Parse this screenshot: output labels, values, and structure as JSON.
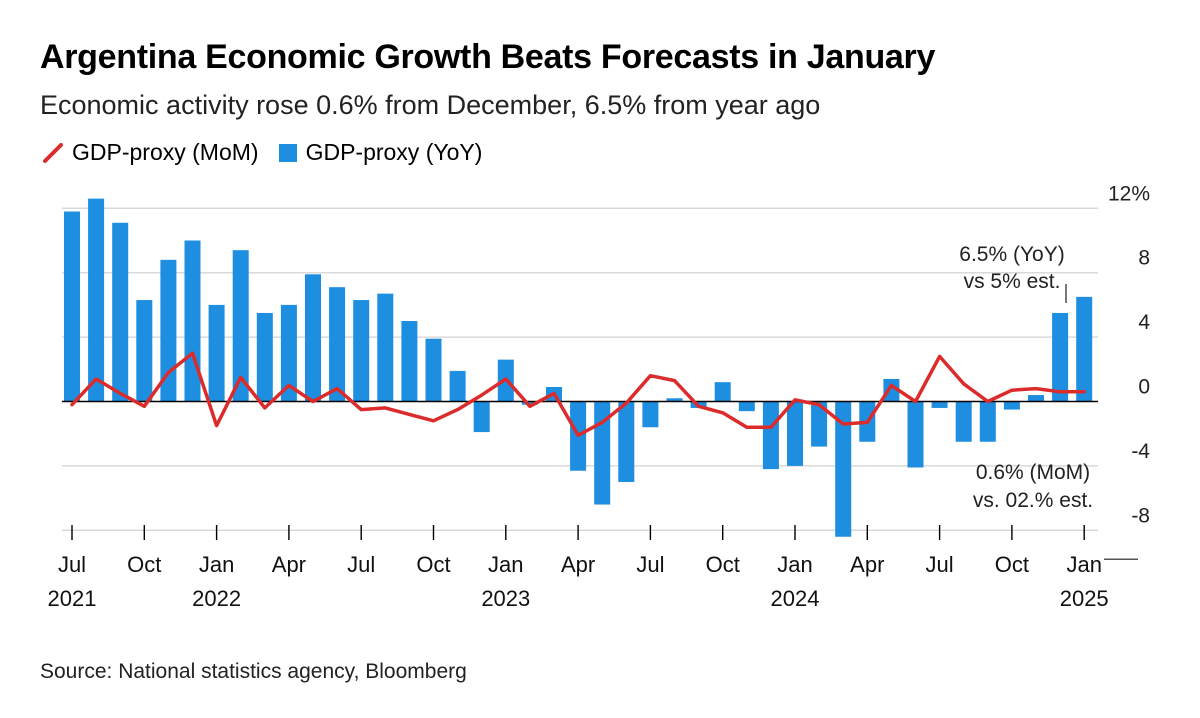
{
  "title": "Argentina Economic Growth Beats Forecasts in January",
  "subtitle": "Economic activity rose 0.6% from December, 6.5% from year ago",
  "source": "Source: National statistics agency, Bloomberg",
  "colors": {
    "bar": "#1e8ee0",
    "line": "#dc2b2b",
    "grid": "#d9d9d9",
    "axis": "#000000"
  },
  "chart_data": {
    "type": "bar",
    "title": "Argentina Economic Growth Beats Forecasts in January",
    "legend": {
      "position": "top-left",
      "entries": [
        "GDP-proxy (MoM)",
        "GDP-proxy (YoY)"
      ]
    },
    "ylim": [
      -8.5,
      12
    ],
    "yticks": [
      {
        "value": 12,
        "label": "12%"
      },
      {
        "value": 8,
        "label": "8"
      },
      {
        "value": 4,
        "label": "4"
      },
      {
        "value": 0,
        "label": "0"
      },
      {
        "value": -4,
        "label": "-4"
      },
      {
        "value": -8,
        "label": "-8"
      }
    ],
    "xticks": [
      {
        "index": 0,
        "month": "Jul",
        "year": "2021"
      },
      {
        "index": 3,
        "month": "Oct",
        "year": ""
      },
      {
        "index": 6,
        "month": "Jan",
        "year": "2022"
      },
      {
        "index": 9,
        "month": "Apr",
        "year": ""
      },
      {
        "index": 12,
        "month": "Jul",
        "year": ""
      },
      {
        "index": 15,
        "month": "Oct",
        "year": ""
      },
      {
        "index": 18,
        "month": "Jan",
        "year": "2023"
      },
      {
        "index": 21,
        "month": "Apr",
        "year": ""
      },
      {
        "index": 24,
        "month": "Jul",
        "year": ""
      },
      {
        "index": 27,
        "month": "Oct",
        "year": ""
      },
      {
        "index": 30,
        "month": "Jan",
        "year": "2024"
      },
      {
        "index": 33,
        "month": "Apr",
        "year": ""
      },
      {
        "index": 36,
        "month": "Jul",
        "year": ""
      },
      {
        "index": 39,
        "month": "Oct",
        "year": ""
      },
      {
        "index": 42,
        "month": "Jan",
        "year": "2025"
      }
    ],
    "series": [
      {
        "name": "GDP-proxy (YoY)",
        "type": "bar",
        "values": [
          11.8,
          12.6,
          11.1,
          6.3,
          8.8,
          10.0,
          6.0,
          9.4,
          5.5,
          6.0,
          7.9,
          7.1,
          6.3,
          6.7,
          5.0,
          3.9,
          1.9,
          -1.9,
          2.6,
          -0.2,
          0.9,
          -4.3,
          -6.4,
          -5.0,
          -1.6,
          0.2,
          -0.4,
          1.2,
          -0.6,
          -4.2,
          -4.0,
          -2.8,
          -8.4,
          -2.5,
          1.4,
          -4.1,
          -0.4,
          -2.5,
          -2.5,
          -0.5,
          0.4,
          5.5,
          6.5
        ]
      },
      {
        "name": "GDP-proxy (MoM)",
        "type": "line",
        "values": [
          -0.2,
          1.4,
          0.5,
          -0.3,
          1.8,
          3.0,
          -1.5,
          1.5,
          -0.4,
          1.0,
          0.0,
          0.8,
          -0.5,
          -0.4,
          -0.8,
          -1.2,
          -0.5,
          0.4,
          1.4,
          -0.3,
          0.5,
          -2.1,
          -1.3,
          -0.1,
          1.6,
          1.3,
          -0.3,
          -0.7,
          -1.6,
          -1.6,
          0.1,
          -0.2,
          -1.4,
          -1.3,
          1.0,
          0.0,
          2.8,
          1.1,
          0.0,
          0.7,
          0.8,
          0.6,
          0.6
        ]
      }
    ],
    "annotations": {
      "yoy_line1": "6.5% (YoY)",
      "yoy_line2": "vs 5% est.",
      "mom_line1": "0.6% (MoM)",
      "mom_line2": "vs. 02.% est."
    }
  }
}
